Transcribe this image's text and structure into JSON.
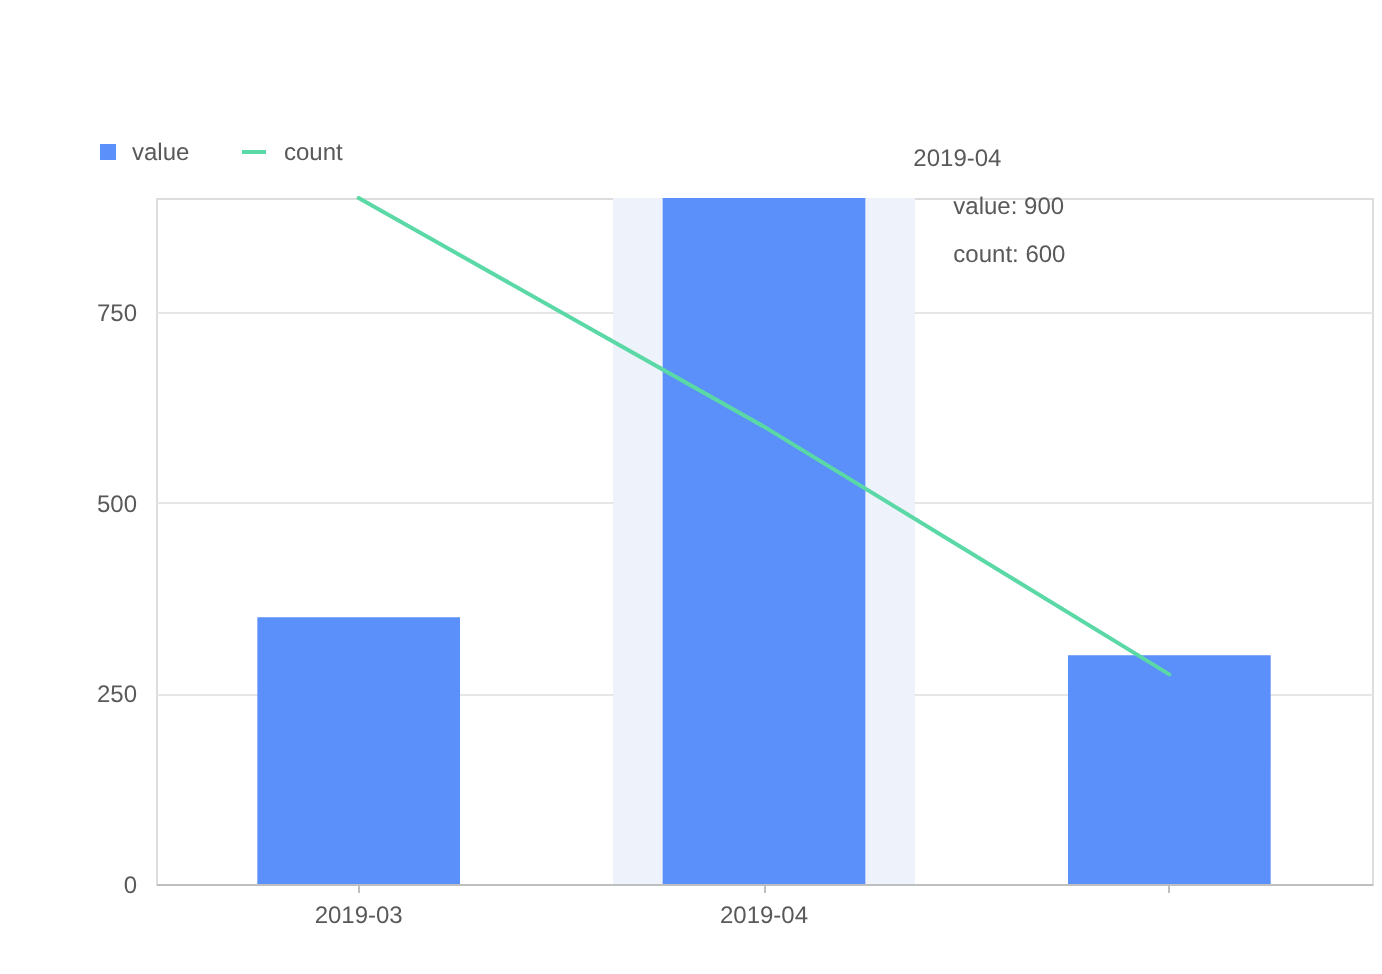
{
  "chart_data": {
    "type": "bar",
    "categories": [
      "2019-03",
      "2019-04",
      null
    ],
    "series": [
      {
        "name": "value",
        "color": "#5b8ff9",
        "values": [
          350,
          900,
          300
        ]
      },
      {
        "name": "count",
        "type": "line",
        "color": "#5ad8a6",
        "values": [
          900,
          600,
          275
        ]
      }
    ],
    "ylim": [
      0,
      900
    ],
    "yticks": [
      0,
      250,
      500,
      750
    ],
    "grid": "y",
    "legend": "top left",
    "bands": [
      {
        "axis": "x",
        "from": "2019-04",
        "to": "2019-04",
        "color": "#eef2fb"
      }
    ],
    "annotations": [
      "2019-04",
      "value: 900",
      "count: 600"
    ]
  }
}
